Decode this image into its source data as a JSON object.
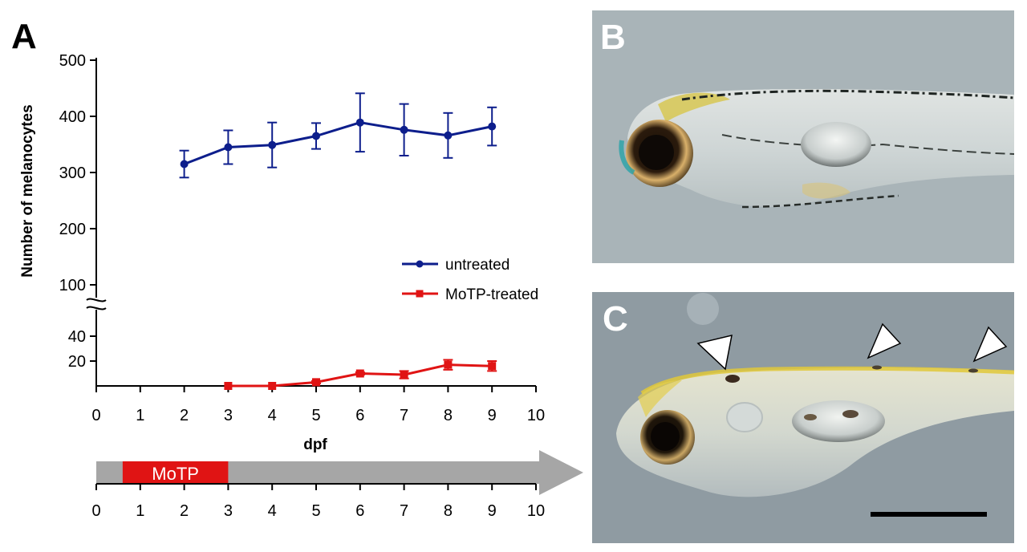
{
  "panels": {
    "a": "A",
    "b": "B",
    "c": "C"
  },
  "timeline": {
    "treatment_label": "MoTP",
    "treatment_start": 0.6,
    "treatment_end": 3,
    "ticks": [
      "0",
      "1",
      "2",
      "3",
      "4",
      "5",
      "6",
      "7",
      "8",
      "9",
      "10"
    ]
  },
  "chart_data": {
    "type": "line",
    "xlabel": "dpf",
    "ylabel": "Number of melanocytes",
    "xlim": [
      0,
      10
    ],
    "x_ticks": [
      "0",
      "1",
      "2",
      "3",
      "4",
      "5",
      "6",
      "7",
      "8",
      "9",
      "10"
    ],
    "y_ticks_upper": [
      "100",
      "200",
      "300",
      "400",
      "500"
    ],
    "y_ticks_lower": [
      "20",
      "40"
    ],
    "y_axis_break": true,
    "legend_position": "center-right",
    "series": [
      {
        "name": "untreated",
        "color": "#0d1e8c",
        "marker": "circle",
        "x": [
          2,
          3,
          4,
          5,
          6,
          7,
          8,
          9
        ],
        "y": [
          315,
          345,
          349,
          365,
          389,
          376,
          366,
          382
        ],
        "err": [
          24,
          30,
          40,
          23,
          52,
          46,
          40,
          34
        ]
      },
      {
        "name": "MoTP-treated",
        "color": "#e01414",
        "marker": "square",
        "x": [
          3,
          4,
          5,
          6,
          7,
          8,
          9
        ],
        "y": [
          0,
          0,
          3,
          10,
          9,
          17,
          16
        ],
        "err": [
          0,
          0,
          1,
          1,
          3,
          4,
          4
        ]
      }
    ]
  },
  "photo_b": {
    "background": "#a2aeb2",
    "body_color": "#d2d8d8",
    "pigment": "dense melanocyte stripe along dorsum"
  },
  "photo_c": {
    "background": "#8f9ba2",
    "body_color": "#d6dccf",
    "arrowheads": 3,
    "scale_bar": true
  }
}
